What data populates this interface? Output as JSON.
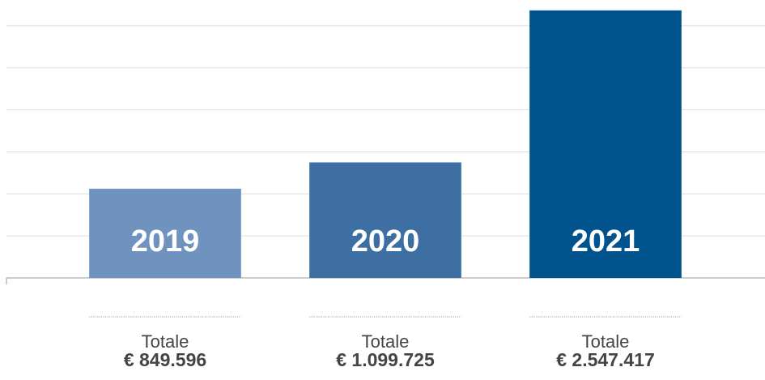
{
  "chart_data": {
    "type": "bar",
    "categories": [
      "2019",
      "2020",
      "2021"
    ],
    "values": [
      849596,
      1099725,
      2547417
    ],
    "value_labels": [
      "€ 849.596",
      "€ 1.099.725",
      "€ 2.547.417"
    ],
    "total_label": "Totale",
    "colors": [
      "#7092bf",
      "#3d6fa3",
      "#00538c"
    ],
    "ylim": [
      0,
      2600000
    ],
    "yticks": [
      0,
      400000,
      800000,
      1200000,
      1600000,
      2000000,
      2400000
    ],
    "grid": true
  }
}
